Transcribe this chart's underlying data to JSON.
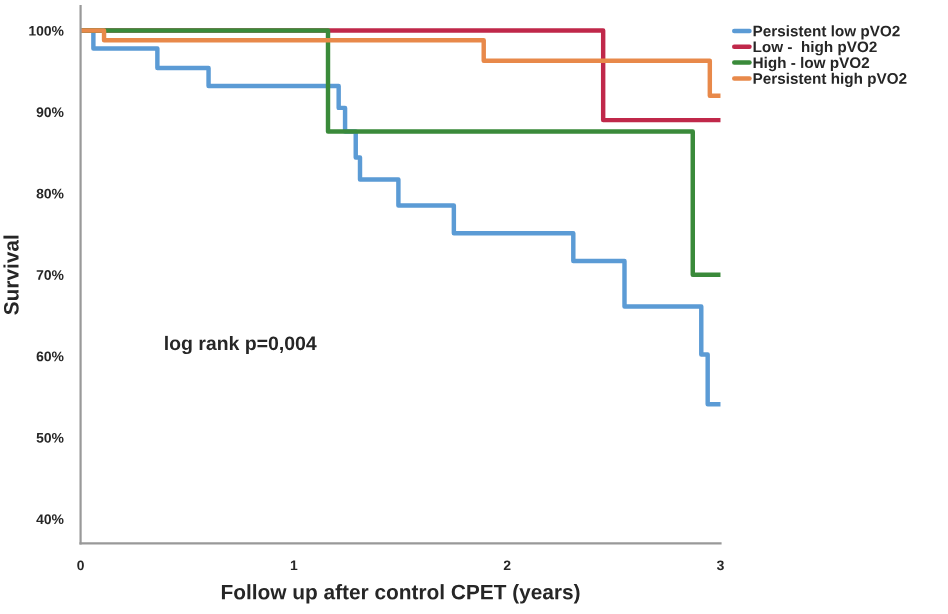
{
  "chart_data": {
    "type": "step",
    "xlabel": "Follow up after control CPET (years)",
    "ylabel": "Survival",
    "xlim": [
      0,
      3
    ],
    "xticks": [
      0,
      1,
      2,
      3
    ],
    "ylim": [
      37,
      103
    ],
    "yticks": [
      {
        "value": 40,
        "label": "40%"
      },
      {
        "value": 50,
        "label": "50%"
      },
      {
        "value": 60,
        "label": "60%"
      },
      {
        "value": 70,
        "label": "70%"
      },
      {
        "value": 80,
        "label": "80%"
      },
      {
        "value": 90,
        "label": "90%"
      },
      {
        "value": 100,
        "label": "100%"
      }
    ],
    "grid": false,
    "legend": "top right",
    "marker": "none",
    "line_style": "solid",
    "annotations": [
      "log rank p=0,004"
    ],
    "series": [
      {
        "name": "Persistent low pVO2",
        "color": "#5b9bd5",
        "x": [
          0,
          0.06,
          0.36,
          0.6,
          1.21,
          1.24,
          1.29,
          1.31,
          1.49,
          1.75,
          2.31,
          2.55,
          2.91,
          2.94,
          3.0
        ],
        "values": [
          100,
          97.8,
          95.4,
          93.2,
          90.5,
          87.6,
          84.4,
          81.7,
          78.5,
          75.1,
          71.7,
          66.1,
          60.2,
          54.1,
          54.1
        ]
      },
      {
        "name": "Low -  high pVO2",
        "color": "#c0284a",
        "x": [
          0,
          2.45,
          3.0
        ],
        "values": [
          100,
          89.0,
          89.0
        ]
      },
      {
        "name": "High - low pVO2",
        "color": "#3a8a3a",
        "x": [
          0,
          1.16,
          2.87,
          3.0
        ],
        "values": [
          100,
          87.6,
          70.0,
          70.0
        ]
      },
      {
        "name": "Persistent high pVO2",
        "color": "#e8894a",
        "x": [
          0,
          0.11,
          1.89,
          2.95,
          3.0
        ],
        "values": [
          100,
          98.8,
          96.3,
          92.0,
          92.0
        ]
      }
    ]
  }
}
